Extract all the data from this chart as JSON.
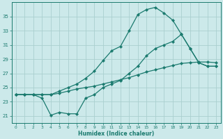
{
  "xlabel": "Humidex (Indice chaleur)",
  "bg_color": "#cce9ea",
  "grid_color": "#aacfcf",
  "line_color": "#1a7a6e",
  "xlim": [
    -0.5,
    23.5
  ],
  "ylim": [
    20.0,
    37.0
  ],
  "yticks": [
    21,
    23,
    25,
    27,
    29,
    31,
    33,
    35
  ],
  "xticks": [
    0,
    1,
    2,
    3,
    4,
    5,
    6,
    7,
    8,
    9,
    10,
    11,
    12,
    13,
    14,
    15,
    16,
    17,
    18,
    19,
    20,
    21,
    22,
    23
  ],
  "line1_x": [
    0,
    1,
    2,
    3,
    4,
    5,
    6,
    7,
    8,
    9,
    10,
    11,
    12,
    13,
    14,
    15,
    16,
    17,
    18,
    19,
    20,
    21,
    22,
    23
  ],
  "line1_y": [
    24.0,
    24.0,
    24.0,
    23.5,
    21.1,
    21.5,
    21.3,
    21.3,
    23.5,
    24.0,
    25.0,
    25.5,
    26.0,
    27.0,
    28.0,
    29.5,
    30.5,
    31.0,
    31.5,
    32.5,
    30.5,
    28.5,
    28.0,
    28.0
  ],
  "line2_x": [
    0,
    1,
    2,
    3,
    4,
    5,
    6,
    7,
    8,
    9,
    10,
    11,
    12,
    13,
    14,
    15,
    16,
    17,
    18,
    19,
    20,
    21,
    22,
    23
  ],
  "line2_y": [
    24.0,
    24.0,
    24.0,
    24.0,
    24.0,
    24.2,
    24.5,
    24.8,
    25.0,
    25.2,
    25.5,
    25.8,
    26.1,
    26.4,
    26.8,
    27.2,
    27.5,
    27.8,
    28.1,
    28.4,
    28.5,
    28.6,
    28.6,
    28.5
  ],
  "line3_x": [
    0,
    1,
    2,
    3,
    4,
    5,
    6,
    7,
    8,
    9,
    10,
    11,
    12,
    13,
    14,
    15,
    16,
    17,
    18,
    19,
    20,
    21,
    22,
    23
  ],
  "line3_y": [
    24.0,
    24.0,
    24.0,
    24.0,
    24.0,
    24.5,
    25.0,
    25.5,
    26.3,
    27.3,
    28.8,
    30.2,
    30.8,
    33.0,
    35.3,
    36.0,
    36.3,
    35.5,
    34.5,
    32.5,
    30.5,
    28.5,
    28.0,
    28.0
  ]
}
